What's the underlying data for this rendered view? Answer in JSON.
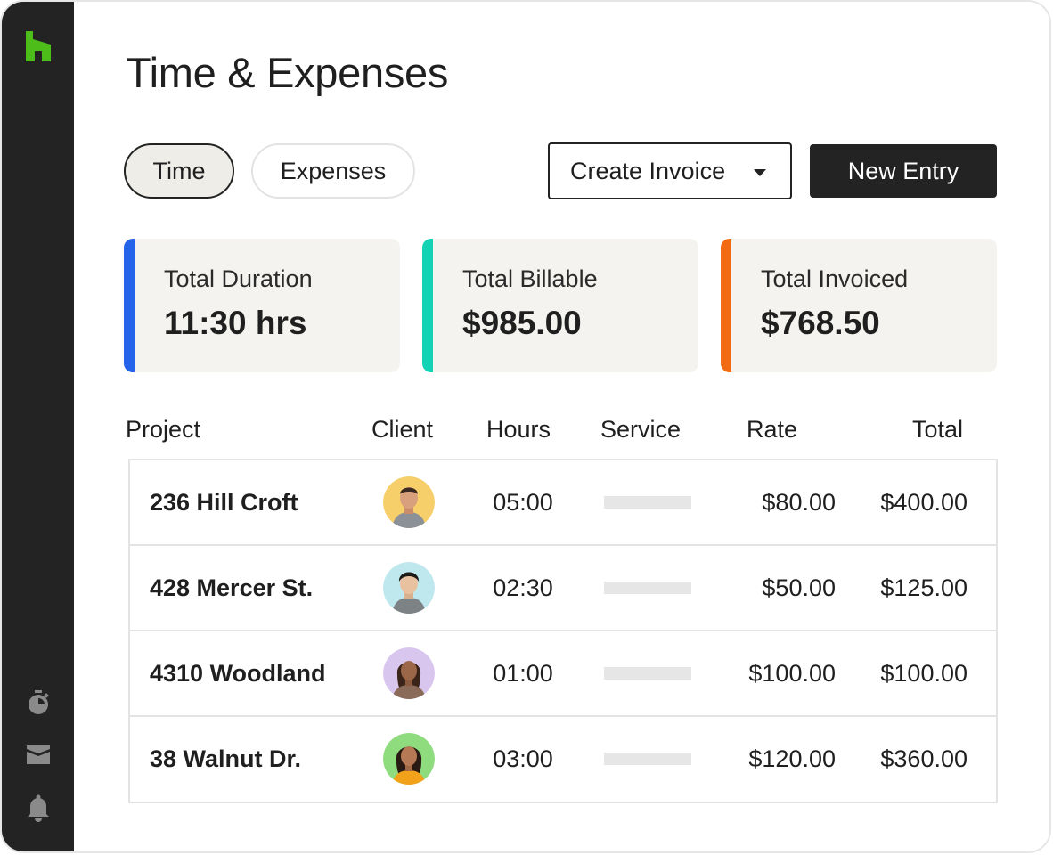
{
  "page": {
    "title": "Time & Expenses"
  },
  "tabs": [
    {
      "label": "Time",
      "active": true
    },
    {
      "label": "Expenses",
      "active": false
    }
  ],
  "actions": {
    "create_invoice_label": "Create Invoice",
    "new_entry_label": "New Entry"
  },
  "summary": [
    {
      "label": "Total Duration",
      "value": "11:30 hrs",
      "accent": "#2563eb"
    },
    {
      "label": "Total Billable",
      "value": "$985.00",
      "accent": "#14d3b4"
    },
    {
      "label": "Total Invoiced",
      "value": "$768.50",
      "accent": "#f26b12"
    }
  ],
  "table": {
    "headers": [
      "Project",
      "Client",
      "Hours",
      "Service",
      "Rate",
      "Total"
    ],
    "rows": [
      {
        "project": "236 Hill Croft",
        "hours": "05:00",
        "rate": "$80.00",
        "total": "$400.00",
        "avatar_bg": "#f7cf6a"
      },
      {
        "project": "428 Mercer St.",
        "hours": "02:30",
        "rate": "$50.00",
        "total": "$125.00",
        "avatar_bg": "#bfe7ee"
      },
      {
        "project": "4310 Woodland",
        "hours": "01:00",
        "rate": "$100.00",
        "total": "$100.00",
        "avatar_bg": "#d9c6ee"
      },
      {
        "project": "38 Walnut Dr.",
        "hours": "03:00",
        "rate": "$120.00",
        "total": "$360.00",
        "avatar_bg": "#8fdc7e"
      }
    ]
  },
  "sidebar": {
    "logo_color": "#4dbd1a",
    "icons": [
      "stopwatch-icon",
      "inbox-icon",
      "bell-icon"
    ]
  }
}
